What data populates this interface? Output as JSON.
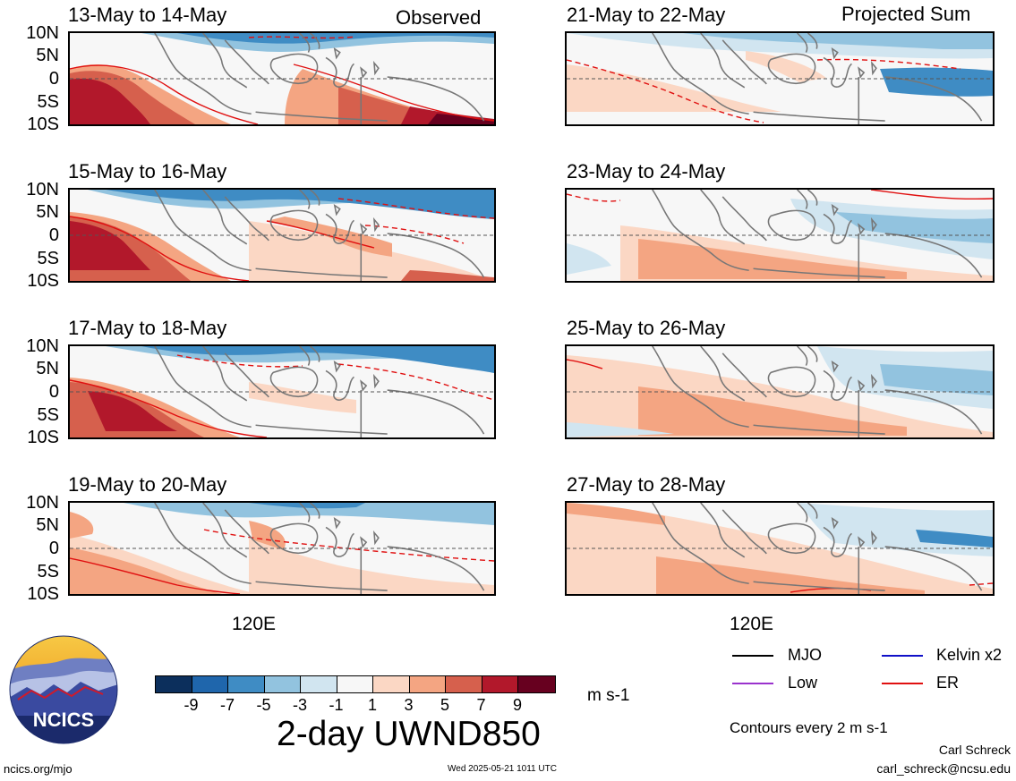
{
  "header": {
    "observed_label": "Observed",
    "projected_label": "Projected Sum"
  },
  "panels": {
    "observed": [
      {
        "title": "13-May to 14-May"
      },
      {
        "title": "15-May to 16-May"
      },
      {
        "title": "17-May to 18-May"
      },
      {
        "title": "19-May to 20-May"
      }
    ],
    "projected": [
      {
        "title": "21-May to 22-May"
      },
      {
        "title": "23-May to 24-May"
      },
      {
        "title": "25-May to 26-May"
      },
      {
        "title": "27-May to 28-May"
      }
    ]
  },
  "axes": {
    "lat_labels": [
      "10N",
      "5N",
      "0",
      "5S",
      "10S"
    ],
    "lon_label": "120E"
  },
  "colorbar": {
    "title": "2-day UWND850",
    "units": "m s-1",
    "ticks": [
      "-9",
      "-7",
      "-5",
      "-3",
      "-1",
      "1",
      "3",
      "5",
      "7",
      "9"
    ],
    "colors": [
      "#0c2f5c",
      "#1f66ac",
      "#3f8cc4",
      "#92c3df",
      "#d1e5f0",
      "#f7f7f7",
      "#fbd7c4",
      "#f4a582",
      "#d6604d",
      "#b2182b",
      "#67001f"
    ]
  },
  "legend": {
    "mjo": "MJO",
    "kelvin": "Kelvin x2",
    "low": "Low",
    "er": "ER",
    "mjo_color": "#000000",
    "kelvin_color": "#1010c8",
    "low_color": "#9a32cd",
    "er_color": "#e01010",
    "contours_note": "Contours every 2 m s-1"
  },
  "footer": {
    "org_logo_text": "NCICS",
    "url": "ncics.org/mjo",
    "timestamp": "Wed 2025-05-21 1011 UTC",
    "author": "Carl Schreck",
    "email": "carl_schreck@ncsu.edu"
  }
}
